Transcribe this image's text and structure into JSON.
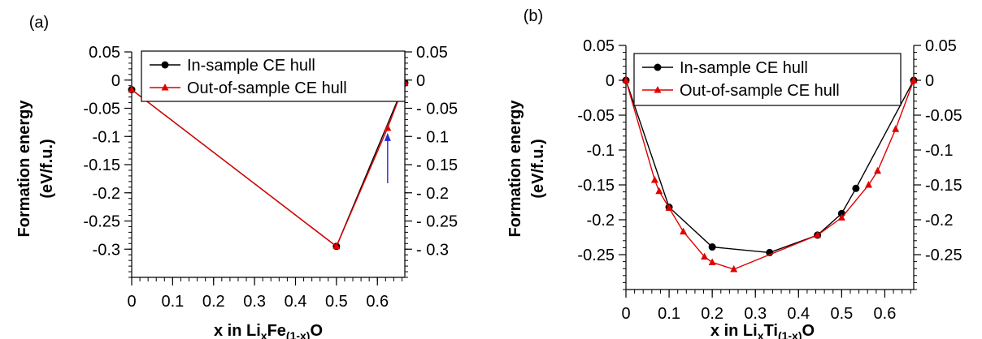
{
  "series_styles": [
    {
      "color": "#000000",
      "marker": "circle"
    },
    {
      "color": "#e00000",
      "marker": "triangle"
    }
  ],
  "arrow_color": "#2a2ad0",
  "chart_data": [
    {
      "type": "line",
      "panel_label": "(a)",
      "ylabel": "Formation energy",
      "ylabel2": "(eV/f.u.)",
      "xlabel": {
        "pre": "x in Li",
        "sub1": "x",
        "mid": "Fe",
        "sub2": "(1-x)",
        "post": "O"
      },
      "xlim": [
        0,
        0.667
      ],
      "ylim": [
        -0.35,
        0.05
      ],
      "xticks": [
        {
          "v": 0,
          "label": "0"
        },
        {
          "v": 0.1,
          "label": "0.1"
        },
        {
          "v": 0.2,
          "label": "0.2"
        },
        {
          "v": 0.3,
          "label": "0.3"
        },
        {
          "v": 0.4,
          "label": "0.4"
        },
        {
          "v": 0.5,
          "label": "0.5"
        },
        {
          "v": 0.6,
          "label": "0.6"
        }
      ],
      "yticks_left": [
        {
          "v": 0.05,
          "label": "0.05"
        },
        {
          "v": 0,
          "label": "0"
        },
        {
          "v": -0.05,
          "label": "-0.05"
        },
        {
          "v": -0.1,
          "label": "-0.1"
        },
        {
          "v": -0.15,
          "label": "-0.15"
        },
        {
          "v": -0.2,
          "label": "-0.2"
        },
        {
          "v": -0.25,
          "label": "-0.25"
        },
        {
          "v": -0.3,
          "label": "-0.3"
        }
      ],
      "yticks_right": [
        {
          "v": 0.05,
          "label": "0.05"
        },
        {
          "v": 0,
          "label": "0"
        },
        {
          "v": -0.05,
          "label": "- 0.05"
        },
        {
          "v": -0.1,
          "label": "- 0.1"
        },
        {
          "v": -0.15,
          "label": "- 0.15"
        },
        {
          "v": -0.2,
          "label": "- 0.2"
        },
        {
          "v": -0.25,
          "label": "- 0.25"
        },
        {
          "v": -0.3,
          "label": "- 0.3"
        }
      ],
      "legend_placement": "top-right",
      "series": [
        {
          "name": "In-sample CE hull",
          "x": [
            0,
            0.5,
            0.667
          ],
          "y": [
            -0.017,
            -0.295,
            -0.005
          ]
        },
        {
          "name": "Out-of-sample CE hull",
          "x": [
            0,
            0.5,
            0.625,
            0.667
          ],
          "y": [
            -0.017,
            -0.295,
            -0.085,
            -0.005
          ]
        }
      ],
      "arrow": {
        "x": 0.625,
        "y_from": -0.183,
        "y_to": -0.098
      }
    },
    {
      "type": "line",
      "panel_label": "(b)",
      "ylabel": "Formation energy",
      "ylabel2": "(eV/f.u.)",
      "xlabel": {
        "pre": "x in Li",
        "sub1": "x",
        "mid": "Ti",
        "sub2": "(1-x)",
        "post": "O"
      },
      "xlim": [
        0,
        0.667
      ],
      "ylim": [
        -0.3,
        0.05
      ],
      "xticks": [
        {
          "v": 0,
          "label": "0"
        },
        {
          "v": 0.1,
          "label": "0.1"
        },
        {
          "v": 0.2,
          "label": "0.2"
        },
        {
          "v": 0.3,
          "label": "0.3"
        },
        {
          "v": 0.4,
          "label": "0.4"
        },
        {
          "v": 0.5,
          "label": "0.5"
        },
        {
          "v": 0.6,
          "label": "0.6"
        }
      ],
      "yticks_left": [
        {
          "v": 0.05,
          "label": "0.05"
        },
        {
          "v": 0,
          "label": "0"
        },
        {
          "v": -0.05,
          "label": "-0.05"
        },
        {
          "v": -0.1,
          "label": "-0.1"
        },
        {
          "v": -0.15,
          "label": "-0.15"
        },
        {
          "v": -0.2,
          "label": "-0.2"
        },
        {
          "v": -0.25,
          "label": "-0.25"
        }
      ],
      "yticks_right": [
        {
          "v": 0.05,
          "label": "0.05"
        },
        {
          "v": 0,
          "label": "0"
        },
        {
          "v": -0.05,
          "label": "-0.05"
        },
        {
          "v": -0.1,
          "label": "-0.1"
        },
        {
          "v": -0.15,
          "label": "-0.15"
        },
        {
          "v": -0.2,
          "label": "-0.2"
        },
        {
          "v": -0.25,
          "label": "-0.25"
        }
      ],
      "legend_placement": "top-right",
      "series": [
        {
          "name": "In-sample CE hull",
          "x": [
            0,
            0.1,
            0.2,
            0.333,
            0.444,
            0.5,
            0.533,
            0.667
          ],
          "y": [
            0,
            -0.182,
            -0.239,
            -0.247,
            -0.222,
            -0.191,
            -0.155,
            0
          ]
        },
        {
          "name": "Out-of-sample CE hull",
          "x": [
            0,
            0.0667,
            0.0769,
            0.1,
            0.133,
            0.182,
            0.2,
            0.25,
            0.444,
            0.5,
            0.5625,
            0.5833,
            0.625,
            0.667
          ],
          "y": [
            0,
            -0.143,
            -0.159,
            -0.183,
            -0.217,
            -0.253,
            -0.261,
            -0.271,
            -0.222,
            -0.197,
            -0.15,
            -0.13,
            -0.07,
            0
          ]
        }
      ]
    }
  ]
}
